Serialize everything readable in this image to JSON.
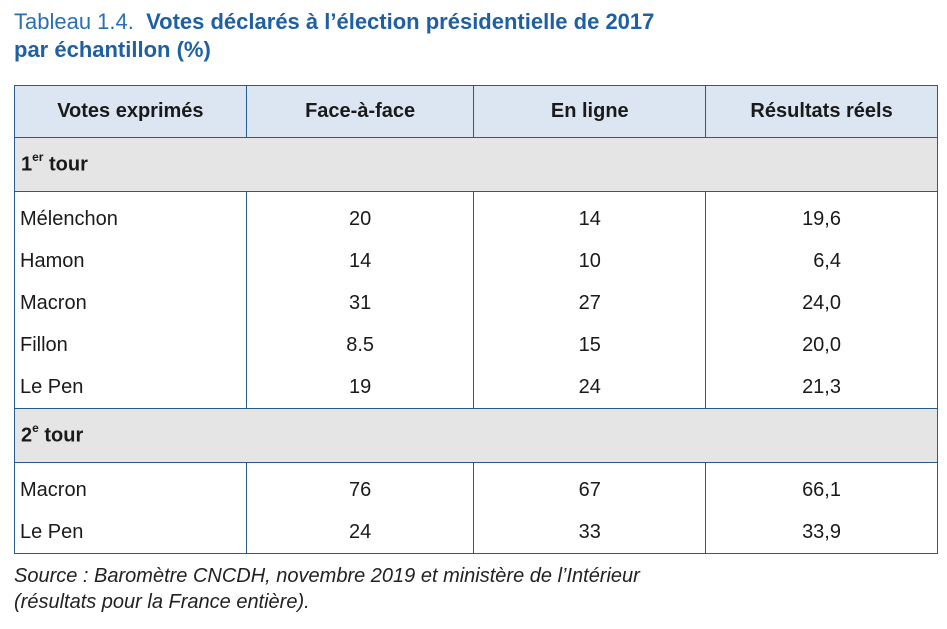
{
  "title": {
    "label": "Tableau 1.4.",
    "line1": "Votes déclarés à l’élection présidentielle de 2017",
    "line2": "par échantillon (%)"
  },
  "table": {
    "headers": [
      "Votes exprimés",
      "Face-à-face",
      "En ligne",
      "Résultats réels"
    ],
    "sections": [
      {
        "label_num": "1",
        "label_sup": "er",
        "label_rest": " tour",
        "rows": [
          {
            "name": "Mélenchon",
            "face": "20",
            "ligne": "14",
            "reel": "19,6"
          },
          {
            "name": "Hamon",
            "face": "14",
            "ligne": "10",
            "reel": "6,4"
          },
          {
            "name": "Macron",
            "face": "31",
            "ligne": "27",
            "reel": "24,0"
          },
          {
            "name": "Fillon",
            "face": "8.5",
            "ligne": "15",
            "reel": "20,0"
          },
          {
            "name": "Le Pen",
            "face": "19",
            "ligne": "24",
            "reel": "21,3"
          }
        ]
      },
      {
        "label_num": "2",
        "label_sup": "e",
        "label_rest": " tour",
        "rows": [
          {
            "name": "Macron",
            "face": "76",
            "ligne": "67",
            "reel": "66,1"
          },
          {
            "name": "Le Pen",
            "face": "24",
            "ligne": "33",
            "reel": "33,9"
          }
        ]
      }
    ]
  },
  "source": {
    "line1": "Source : Baromètre CNCDH, novembre 2019 et ministère de l’Intérieur",
    "line2": "(résultats pour la France entière)."
  },
  "colors": {
    "title_blue": "#1f5fa6",
    "header_bg": "#dce6f3",
    "section_bg": "#e5e5e5",
    "border": "#2a5a8a"
  }
}
